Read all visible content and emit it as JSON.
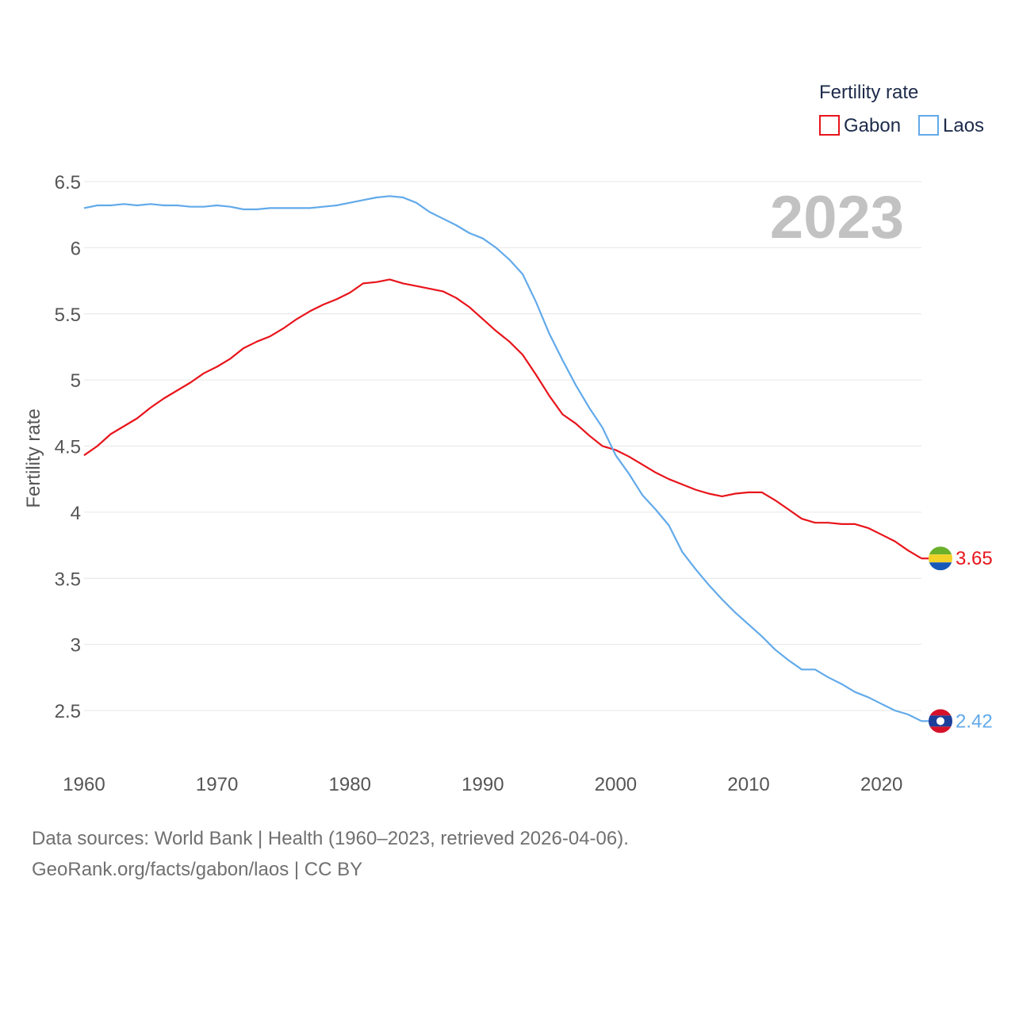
{
  "chart_data": {
    "type": "line",
    "legend_title": "Fertility rate",
    "ylabel": "Fertility rate",
    "year_label": "2023",
    "ylim": [
      2.25,
      6.6
    ],
    "xlim": [
      1960,
      2023
    ],
    "y_ticks": [
      {
        "value": 2.5,
        "label": "2.5"
      },
      {
        "value": 3,
        "label": "3"
      },
      {
        "value": 3.5,
        "label": "3.5"
      },
      {
        "value": 4,
        "label": "4"
      },
      {
        "value": 4.5,
        "label": "4.5"
      },
      {
        "value": 5,
        "label": "5"
      },
      {
        "value": 5.5,
        "label": "5.5"
      },
      {
        "value": 6,
        "label": "6"
      },
      {
        "value": 6.5,
        "label": "6.5"
      }
    ],
    "x_ticks": [
      {
        "value": 1960,
        "label": "1960"
      },
      {
        "value": 1970,
        "label": "1970"
      },
      {
        "value": 1980,
        "label": "1980"
      },
      {
        "value": 1990,
        "label": "1990"
      },
      {
        "value": 2000,
        "label": "2000"
      },
      {
        "value": 2010,
        "label": "2010"
      },
      {
        "value": 2020,
        "label": "2020"
      }
    ],
    "series": [
      {
        "name": "Gabon",
        "color": "#e8141b",
        "flag": "gabon-flag-icon",
        "end_label": "3.65",
        "x": [
          1960,
          1961,
          1962,
          1963,
          1964,
          1965,
          1966,
          1967,
          1968,
          1969,
          1970,
          1971,
          1972,
          1973,
          1974,
          1975,
          1976,
          1977,
          1978,
          1979,
          1980,
          1981,
          1982,
          1983,
          1984,
          1985,
          1986,
          1987,
          1988,
          1989,
          1990,
          1991,
          1992,
          1993,
          1994,
          1995,
          1996,
          1997,
          1998,
          1999,
          2000,
          2001,
          2002,
          2003,
          2004,
          2005,
          2006,
          2007,
          2008,
          2009,
          2010,
          2011,
          2012,
          2013,
          2014,
          2015,
          2016,
          2017,
          2018,
          2019,
          2020,
          2021,
          2022,
          2023
        ],
        "values": [
          4.43,
          4.5,
          4.59,
          4.65,
          4.71,
          4.79,
          4.86,
          4.92,
          4.98,
          5.05,
          5.1,
          5.16,
          5.24,
          5.29,
          5.33,
          5.39,
          5.46,
          5.52,
          5.57,
          5.61,
          5.66,
          5.73,
          5.74,
          5.76,
          5.73,
          5.71,
          5.69,
          5.67,
          5.62,
          5.55,
          5.46,
          5.37,
          5.29,
          5.19,
          5.04,
          4.88,
          4.74,
          4.67,
          4.58,
          4.5,
          4.47,
          4.42,
          4.36,
          4.3,
          4.25,
          4.21,
          4.17,
          4.14,
          4.12,
          4.14,
          4.15,
          4.15,
          4.09,
          4.02,
          3.95,
          3.92,
          3.92,
          3.91,
          3.91,
          3.88,
          3.83,
          3.78,
          3.71,
          3.65
        ]
      },
      {
        "name": "Laos",
        "color": "#62aaea",
        "flag": "laos-flag-icon",
        "end_label": "2.42",
        "x": [
          1960,
          1961,
          1962,
          1963,
          1964,
          1965,
          1966,
          1967,
          1968,
          1969,
          1970,
          1971,
          1972,
          1973,
          1974,
          1975,
          1976,
          1977,
          1978,
          1979,
          1980,
          1981,
          1982,
          1983,
          1984,
          1985,
          1986,
          1987,
          1988,
          1989,
          1990,
          1991,
          1992,
          1993,
          1994,
          1995,
          1996,
          1997,
          1998,
          1999,
          2000,
          2001,
          2002,
          2003,
          2004,
          2005,
          2006,
          2007,
          2008,
          2009,
          2010,
          2011,
          2012,
          2013,
          2014,
          2015,
          2016,
          2017,
          2018,
          2019,
          2020,
          2021,
          2022,
          2023
        ],
        "values": [
          6.3,
          6.32,
          6.32,
          6.33,
          6.32,
          6.33,
          6.32,
          6.32,
          6.31,
          6.31,
          6.32,
          6.31,
          6.29,
          6.29,
          6.3,
          6.3,
          6.3,
          6.3,
          6.31,
          6.32,
          6.34,
          6.36,
          6.38,
          6.39,
          6.38,
          6.34,
          6.27,
          6.22,
          6.17,
          6.11,
          6.07,
          6.0,
          5.91,
          5.8,
          5.59,
          5.35,
          5.15,
          4.96,
          4.79,
          4.64,
          4.43,
          4.29,
          4.13,
          4.02,
          3.9,
          3.7,
          3.57,
          3.45,
          3.34,
          3.24,
          3.15,
          3.06,
          2.96,
          2.88,
          2.81,
          2.81,
          2.75,
          2.7,
          2.64,
          2.6,
          2.55,
          2.5,
          2.47,
          2.42
        ]
      }
    ]
  },
  "footer": {
    "line1": "Data sources: World Bank | Health (1960–2023, retrieved 2026-04-06).",
    "line2": "GeoRank.org/facts/gabon/laos | CC BY"
  }
}
